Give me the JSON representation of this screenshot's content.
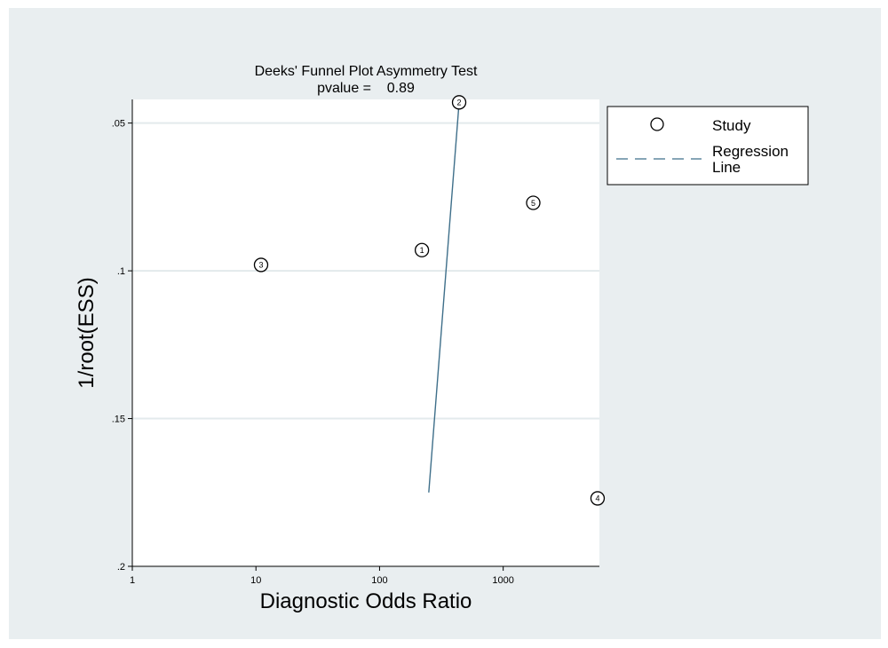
{
  "chart_data": {
    "type": "scatter",
    "title": "Deeks' Funnel Plot Asymmetry Test",
    "subtitle": "pvalue =    0.89",
    "xlabel": "Diagnostic Odds Ratio",
    "ylabel": "1/root(ESS)",
    "x_scale": "log",
    "xlim": [
      1,
      6000
    ],
    "ylim": [
      0.2,
      0.042
    ],
    "y_inverted": true,
    "x_ticks": [
      {
        "value": 1,
        "label": "1"
      },
      {
        "value": 10,
        "label": "10"
      },
      {
        "value": 100,
        "label": "100"
      },
      {
        "value": 1000,
        "label": "1000"
      }
    ],
    "y_ticks": [
      {
        "value": 0.05,
        "label": ".05"
      },
      {
        "value": 0.1,
        "label": ".1"
      },
      {
        "value": 0.15,
        "label": ".15"
      },
      {
        "value": 0.2,
        "label": ".2"
      }
    ],
    "grid": "horizontal",
    "series": [
      {
        "name": "Study",
        "kind": "points",
        "points": [
          {
            "label": "1",
            "x": 220,
            "y": 0.093
          },
          {
            "label": "2",
            "x": 440,
            "y": 0.043
          },
          {
            "label": "3",
            "x": 11,
            "y": 0.098
          },
          {
            "label": "4",
            "x": 5800,
            "y": 0.177
          },
          {
            "label": "5",
            "x": 1750,
            "y": 0.077
          }
        ]
      },
      {
        "name": "Regression Line",
        "kind": "line",
        "style": "dashed",
        "points": [
          {
            "x": 250,
            "y": 0.175
          },
          {
            "x": 440,
            "y": 0.043
          }
        ]
      }
    ],
    "legend": {
      "position": "right",
      "items": [
        {
          "marker": "circle",
          "label": "Study"
        },
        {
          "marker": "dashed-line",
          "label_lines": [
            "Regression",
            "Line"
          ]
        }
      ]
    },
    "colors": {
      "background": "#e9eef0",
      "plot": "#ffffff",
      "grid": "#e3eaec",
      "line": "#3f6f8a"
    }
  }
}
